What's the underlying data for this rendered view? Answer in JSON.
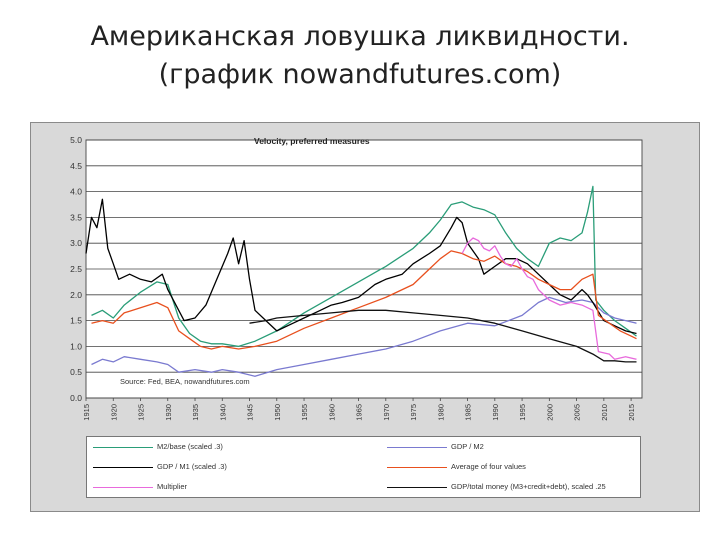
{
  "slide": {
    "title_line1": "Американская ловушка ликвидности.",
    "title_line2": "(график nowandfutures.com)"
  },
  "chart_data": {
    "type": "line",
    "title": "Velocity, preferred measures",
    "source_note": "Source: Fed, BEA, nowandfutures.com",
    "xlim": [
      1915,
      2017
    ],
    "ylim": [
      0.0,
      5.0
    ],
    "x_ticks": [
      1915,
      1920,
      1925,
      1930,
      1935,
      1940,
      1945,
      1950,
      1955,
      1960,
      1965,
      1970,
      1975,
      1980,
      1985,
      1990,
      1995,
      2000,
      2005,
      2010,
      2015
    ],
    "y_ticks": [
      0.0,
      0.5,
      1.0,
      1.5,
      2.0,
      2.5,
      3.0,
      3.5,
      4.0,
      4.5,
      5.0
    ],
    "y_tick_labels": [
      "0.0",
      "0.5",
      "1.0",
      "1.5",
      "2.0",
      "2.5",
      "3.0",
      "3.5",
      "4.0",
      "4.5",
      "5.0"
    ],
    "grid": true,
    "legend_position": "bottom",
    "series": [
      {
        "name": "M2/base (scaled .3)",
        "color": "#2a9d78",
        "points": [
          [
            1916,
            1.6
          ],
          [
            1918,
            1.7
          ],
          [
            1920,
            1.55
          ],
          [
            1922,
            1.8
          ],
          [
            1925,
            2.05
          ],
          [
            1928,
            2.25
          ],
          [
            1930,
            2.2
          ],
          [
            1932,
            1.55
          ],
          [
            1934,
            1.25
          ],
          [
            1936,
            1.1
          ],
          [
            1938,
            1.05
          ],
          [
            1940,
            1.05
          ],
          [
            1943,
            1.0
          ],
          [
            1946,
            1.1
          ],
          [
            1950,
            1.3
          ],
          [
            1955,
            1.65
          ],
          [
            1960,
            1.95
          ],
          [
            1965,
            2.25
          ],
          [
            1970,
            2.55
          ],
          [
            1975,
            2.9
          ],
          [
            1978,
            3.2
          ],
          [
            1980,
            3.45
          ],
          [
            1982,
            3.75
          ],
          [
            1984,
            3.8
          ],
          [
            1986,
            3.7
          ],
          [
            1988,
            3.65
          ],
          [
            1990,
            3.55
          ],
          [
            1992,
            3.2
          ],
          [
            1994,
            2.9
          ],
          [
            1996,
            2.7
          ],
          [
            1998,
            2.55
          ],
          [
            2000,
            3.0
          ],
          [
            2002,
            3.1
          ],
          [
            2004,
            3.05
          ],
          [
            2006,
            3.2
          ],
          [
            2007,
            3.6
          ],
          [
            2008,
            4.1
          ],
          [
            2008.5,
            1.9
          ],
          [
            2010,
            1.7
          ],
          [
            2012,
            1.5
          ],
          [
            2014,
            1.35
          ],
          [
            2016,
            1.2
          ]
        ]
      },
      {
        "name": "GDP / M2",
        "color": "#7a7ad0",
        "points": [
          [
            1916,
            0.65
          ],
          [
            1918,
            0.75
          ],
          [
            1920,
            0.7
          ],
          [
            1922,
            0.8
          ],
          [
            1925,
            0.75
          ],
          [
            1928,
            0.7
          ],
          [
            1930,
            0.65
          ],
          [
            1932,
            0.5
          ],
          [
            1935,
            0.55
          ],
          [
            1938,
            0.5
          ],
          [
            1940,
            0.55
          ],
          [
            1943,
            0.5
          ],
          [
            1946,
            0.42
          ],
          [
            1950,
            0.55
          ],
          [
            1955,
            0.65
          ],
          [
            1960,
            0.75
          ],
          [
            1965,
            0.85
          ],
          [
            1970,
            0.95
          ],
          [
            1975,
            1.1
          ],
          [
            1980,
            1.3
          ],
          [
            1985,
            1.45
          ],
          [
            1990,
            1.4
          ],
          [
            1995,
            1.6
          ],
          [
            1998,
            1.85
          ],
          [
            2000,
            1.95
          ],
          [
            2003,
            1.85
          ],
          [
            2006,
            1.9
          ],
          [
            2008,
            1.85
          ],
          [
            2010,
            1.65
          ],
          [
            2012,
            1.55
          ],
          [
            2014,
            1.5
          ],
          [
            2016,
            1.45
          ]
        ]
      },
      {
        "name": "GDP / M1 (scaled .3)",
        "color": "#000000",
        "points": [
          [
            1915,
            2.8
          ],
          [
            1916,
            3.5
          ],
          [
            1917,
            3.3
          ],
          [
            1918,
            3.85
          ],
          [
            1919,
            2.9
          ],
          [
            1920,
            2.6
          ],
          [
            1921,
            2.3
          ],
          [
            1923,
            2.4
          ],
          [
            1925,
            2.3
          ],
          [
            1927,
            2.25
          ],
          [
            1929,
            2.4
          ],
          [
            1930,
            2.1
          ],
          [
            1932,
            1.7
          ],
          [
            1933,
            1.5
          ],
          [
            1935,
            1.55
          ],
          [
            1937,
            1.8
          ],
          [
            1939,
            2.3
          ],
          [
            1941,
            2.8
          ],
          [
            1942,
            3.1
          ],
          [
            1943,
            2.6
          ],
          [
            1944,
            3.05
          ],
          [
            1945,
            2.3
          ],
          [
            1946,
            1.7
          ],
          [
            1948,
            1.5
          ],
          [
            1950,
            1.3
          ],
          [
            1953,
            1.45
          ],
          [
            1955,
            1.55
          ],
          [
            1958,
            1.7
          ],
          [
            1960,
            1.8
          ],
          [
            1962,
            1.85
          ],
          [
            1965,
            1.95
          ],
          [
            1968,
            2.2
          ],
          [
            1970,
            2.3
          ],
          [
            1973,
            2.4
          ],
          [
            1975,
            2.6
          ],
          [
            1978,
            2.8
          ],
          [
            1980,
            2.95
          ],
          [
            1982,
            3.3
          ],
          [
            1983,
            3.5
          ],
          [
            1984,
            3.4
          ],
          [
            1985,
            3.0
          ],
          [
            1987,
            2.7
          ],
          [
            1988,
            2.4
          ],
          [
            1990,
            2.55
          ],
          [
            1992,
            2.7
          ],
          [
            1994,
            2.7
          ],
          [
            1996,
            2.6
          ],
          [
            1998,
            2.4
          ],
          [
            2000,
            2.2
          ],
          [
            2002,
            2.0
          ],
          [
            2004,
            1.9
          ],
          [
            2006,
            2.1
          ],
          [
            2007,
            2.0
          ],
          [
            2008,
            1.85
          ],
          [
            2010,
            1.5
          ],
          [
            2012,
            1.4
          ],
          [
            2014,
            1.3
          ],
          [
            2016,
            1.25
          ]
        ]
      },
      {
        "name": "Average of four values",
        "color": "#e8501e",
        "points": [
          [
            1916,
            1.45
          ],
          [
            1918,
            1.5
          ],
          [
            1920,
            1.45
          ],
          [
            1922,
            1.65
          ],
          [
            1925,
            1.75
          ],
          [
            1928,
            1.85
          ],
          [
            1930,
            1.75
          ],
          [
            1932,
            1.3
          ],
          [
            1934,
            1.15
          ],
          [
            1936,
            1.0
          ],
          [
            1938,
            0.95
          ],
          [
            1940,
            1.0
          ],
          [
            1943,
            0.95
          ],
          [
            1946,
            1.0
          ],
          [
            1950,
            1.1
          ],
          [
            1955,
            1.35
          ],
          [
            1960,
            1.55
          ],
          [
            1965,
            1.75
          ],
          [
            1970,
            1.95
          ],
          [
            1975,
            2.2
          ],
          [
            1978,
            2.5
          ],
          [
            1980,
            2.7
          ],
          [
            1982,
            2.85
          ],
          [
            1984,
            2.8
          ],
          [
            1986,
            2.7
          ],
          [
            1988,
            2.65
          ],
          [
            1990,
            2.75
          ],
          [
            1992,
            2.6
          ],
          [
            1994,
            2.55
          ],
          [
            1996,
            2.45
          ],
          [
            1998,
            2.3
          ],
          [
            2000,
            2.2
          ],
          [
            2002,
            2.1
          ],
          [
            2004,
            2.1
          ],
          [
            2006,
            2.3
          ],
          [
            2008,
            2.4
          ],
          [
            2009,
            1.6
          ],
          [
            2011,
            1.45
          ],
          [
            2013,
            1.3
          ],
          [
            2015,
            1.2
          ],
          [
            2016,
            1.15
          ]
        ]
      },
      {
        "name": "Multiplier",
        "color": "#e86adc",
        "points": [
          [
            1984,
            2.8
          ],
          [
            1985,
            3.0
          ],
          [
            1986,
            3.1
          ],
          [
            1987,
            3.05
          ],
          [
            1988,
            2.9
          ],
          [
            1989,
            2.85
          ],
          [
            1990,
            2.95
          ],
          [
            1991,
            2.75
          ],
          [
            1992,
            2.6
          ],
          [
            1993,
            2.55
          ],
          [
            1994,
            2.7
          ],
          [
            1995,
            2.5
          ],
          [
            1996,
            2.35
          ],
          [
            1997,
            2.3
          ],
          [
            1998,
            2.1
          ],
          [
            2000,
            1.9
          ],
          [
            2002,
            1.8
          ],
          [
            2004,
            1.85
          ],
          [
            2006,
            1.8
          ],
          [
            2008,
            1.7
          ],
          [
            2009,
            0.9
          ],
          [
            2011,
            0.85
          ],
          [
            2012,
            0.75
          ],
          [
            2014,
            0.8
          ],
          [
            2016,
            0.75
          ]
        ]
      },
      {
        "name": "GDP/total money (M3+credit+debt), scaled .25",
        "color": "#111111",
        "points": [
          [
            1945,
            1.45
          ],
          [
            1948,
            1.5
          ],
          [
            1950,
            1.55
          ],
          [
            1955,
            1.6
          ],
          [
            1960,
            1.65
          ],
          [
            1965,
            1.7
          ],
          [
            1970,
            1.7
          ],
          [
            1975,
            1.65
          ],
          [
            1980,
            1.6
          ],
          [
            1985,
            1.55
          ],
          [
            1990,
            1.45
          ],
          [
            1995,
            1.3
          ],
          [
            2000,
            1.15
          ],
          [
            2005,
            1.0
          ],
          [
            2008,
            0.85
          ],
          [
            2010,
            0.72
          ],
          [
            2012,
            0.72
          ],
          [
            2014,
            0.7
          ],
          [
            2016,
            0.7
          ]
        ]
      }
    ]
  }
}
